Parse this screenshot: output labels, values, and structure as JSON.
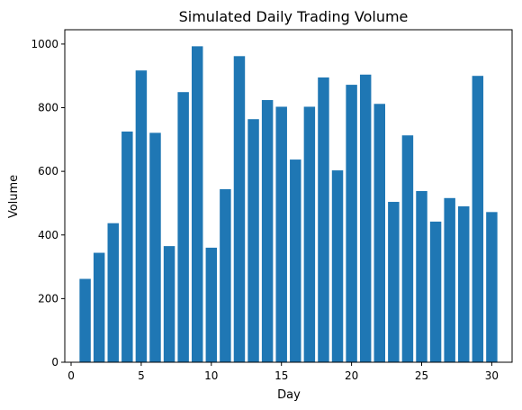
{
  "chart_data": {
    "type": "bar",
    "title": "Simulated Daily Trading Volume",
    "xlabel": "Day",
    "ylabel": "Volume",
    "bar_color": "#1f77b4",
    "xlim": [
      -0.45,
      31.45
    ],
    "ylim": [
      0,
      1045
    ],
    "xticks": [
      0,
      5,
      10,
      15,
      20,
      25,
      30
    ],
    "yticks": [
      0,
      200,
      400,
      600,
      800,
      1000
    ],
    "bar_width": 0.8,
    "x": [
      1,
      2,
      3,
      4,
      5,
      6,
      7,
      8,
      9,
      10,
      11,
      12,
      13,
      14,
      15,
      16,
      17,
      18,
      19,
      20,
      21,
      22,
      23,
      24,
      25,
      26,
      27,
      28,
      29,
      30
    ],
    "values": [
      262,
      344,
      437,
      725,
      917,
      721,
      365,
      849,
      993,
      360,
      544,
      962,
      764,
      824,
      803,
      637,
      803,
      895,
      603,
      872,
      904,
      812,
      504,
      713,
      538,
      442,
      516,
      490,
      900,
      472
    ],
    "grid": false,
    "legend": "none"
  }
}
